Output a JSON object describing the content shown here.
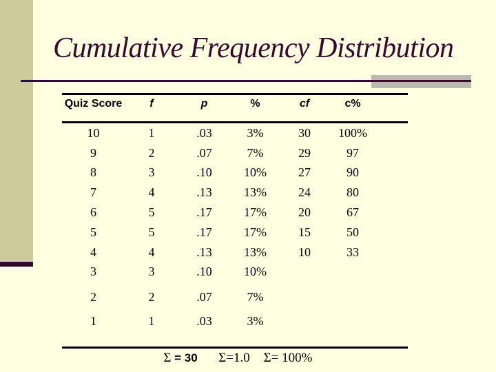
{
  "slide": {
    "title": "Cumulative Frequency Distribution",
    "colors": {
      "background": "#FFFFE1",
      "sidebar": "#CBCB9B",
      "accent": "#330A2C",
      "title": "#38092F",
      "gray_band": "#BABAB2",
      "table_text": "#000000"
    }
  },
  "table": {
    "columns": [
      "Quiz Score",
      "f",
      "p",
      "%",
      "cf",
      "c%"
    ],
    "rows": [
      [
        "10",
        "1",
        ".03",
        "3%",
        "30",
        "100%"
      ],
      [
        "9",
        "2",
        ".07",
        "7%",
        "29",
        "97"
      ],
      [
        "8",
        "3",
        ".10",
        "10%",
        "27",
        "90"
      ],
      [
        "7",
        "4",
        ".13",
        "13%",
        "24",
        "80"
      ],
      [
        "6",
        "5",
        ".17",
        "17%",
        "20",
        "67"
      ],
      [
        "5",
        "5",
        ".17",
        "17%",
        "15",
        "50"
      ],
      [
        "4",
        "4",
        ".13",
        "13%",
        "10",
        "33"
      ],
      [
        "3",
        "3",
        ".10",
        "10%",
        "",
        ""
      ],
      [
        "2",
        "2",
        ".07",
        "7%",
        "",
        ""
      ],
      [
        "1",
        "1",
        ".03",
        "3%",
        "",
        ""
      ]
    ],
    "totals": {
      "f": {
        "sym": "Σ",
        "val": " = 30"
      },
      "p": {
        "sym": "Σ",
        "val": "=1.0"
      },
      "pct": {
        "sym": "Σ",
        "val": "= 100%"
      }
    }
  }
}
